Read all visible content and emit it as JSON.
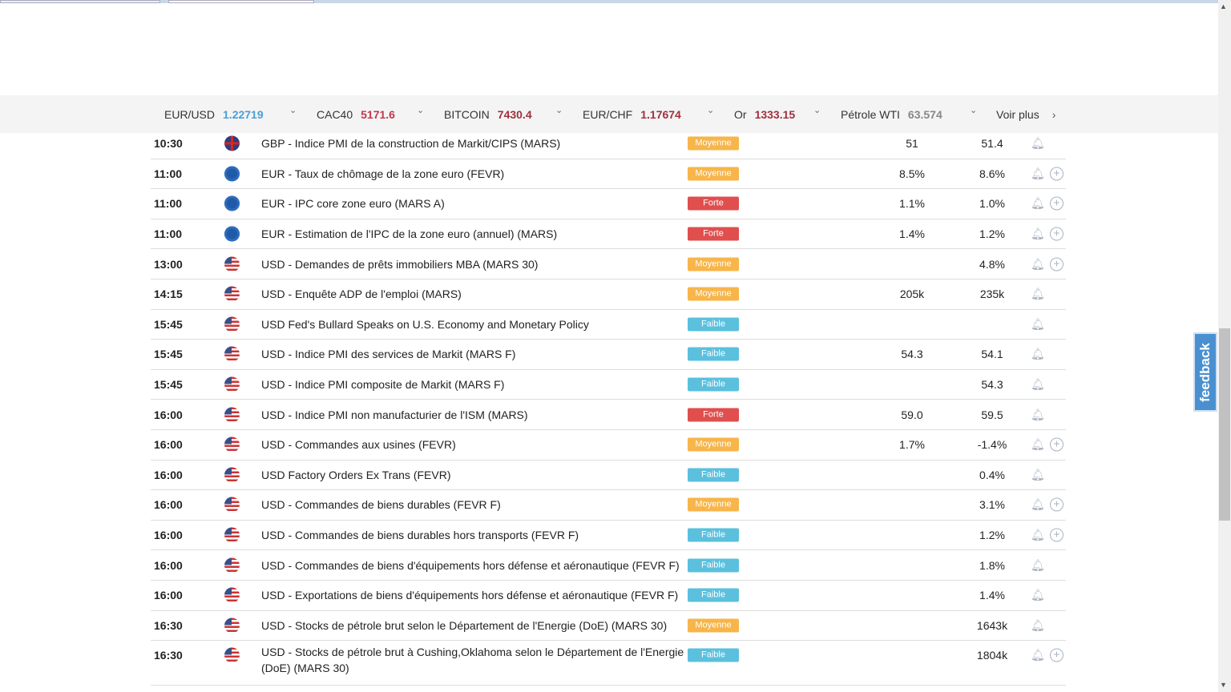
{
  "ticker": [
    {
      "label": "EUR/USD",
      "value": "1.22719",
      "color": "#4a9fd5"
    },
    {
      "label": "CAC40",
      "value": "5171.6",
      "color": "#c0394f"
    },
    {
      "label": "BITCOIN",
      "value": "7430.4",
      "color": "#a0303f"
    },
    {
      "label": "EUR/CHF",
      "value": "1.17674",
      "color": "#a0303f"
    },
    {
      "label": "Or",
      "value": "1333.15",
      "color": "#a0303f"
    },
    {
      "label": "Pétrole WTI",
      "value": "63.574",
      "color": "#888888"
    }
  ],
  "see_more": "Voir plus",
  "feedback": "feedback",
  "rows": [
    {
      "time": "10:30",
      "flag": "gbp",
      "event": "GBP - Indice PMI de la construction de Markit/CIPS (MARS)",
      "impact": "Moyenne",
      "previous": "51",
      "actual": "51.4",
      "plus": false
    },
    {
      "time": "11:00",
      "flag": "eur",
      "event": "EUR - Taux de chômage de la zone euro (FEVR)",
      "impact": "Moyenne",
      "previous": "8.5%",
      "actual": "8.6%",
      "plus": true
    },
    {
      "time": "11:00",
      "flag": "eur",
      "event": "EUR - IPC core zone euro (MARS A)",
      "impact": "Forte",
      "previous": "1.1%",
      "actual": "1.0%",
      "plus": true
    },
    {
      "time": "11:00",
      "flag": "eur",
      "event": "EUR - Estimation de l'IPC de la zone euro (annuel) (MARS)",
      "impact": "Forte",
      "previous": "1.4%",
      "actual": "1.2%",
      "plus": true
    },
    {
      "time": "13:00",
      "flag": "usd",
      "event": "USD - Demandes de prêts immobiliers MBA (MARS 30)",
      "impact": "Moyenne",
      "previous": "",
      "actual": "4.8%",
      "plus": true
    },
    {
      "time": "14:15",
      "flag": "usd",
      "event": "USD - Enquête ADP de l'emploi (MARS)",
      "impact": "Moyenne",
      "previous": "205k",
      "actual": "235k",
      "plus": false
    },
    {
      "time": "15:45",
      "flag": "usd",
      "event": "USD Fed's Bullard Speaks on U.S. Economy and Monetary Policy",
      "impact": "Faible",
      "previous": "",
      "actual": "",
      "plus": false
    },
    {
      "time": "15:45",
      "flag": "usd",
      "event": "USD - Indice PMI des services de Markit (MARS F)",
      "impact": "Faible",
      "previous": "54.3",
      "actual": "54.1",
      "plus": false
    },
    {
      "time": "15:45",
      "flag": "usd",
      "event": "USD - Indice PMI composite de Markit (MARS F)",
      "impact": "Faible",
      "previous": "",
      "actual": "54.3",
      "plus": false
    },
    {
      "time": "16:00",
      "flag": "usd",
      "event": "USD - Indice PMI non manufacturier de l'ISM (MARS)",
      "impact": "Forte",
      "previous": "59.0",
      "actual": "59.5",
      "plus": false
    },
    {
      "time": "16:00",
      "flag": "usd",
      "event": "USD - Commandes aux usines (FEVR)",
      "impact": "Moyenne",
      "previous": "1.7%",
      "actual": "-1.4%",
      "plus": true
    },
    {
      "time": "16:00",
      "flag": "usd",
      "event": "USD Factory Orders Ex Trans (FEVR)",
      "impact": "Faible",
      "previous": "",
      "actual": "0.4%",
      "plus": false
    },
    {
      "time": "16:00",
      "flag": "usd",
      "event": "USD - Commandes de biens durables (FEVR F)",
      "impact": "Moyenne",
      "previous": "",
      "actual": "3.1%",
      "plus": true
    },
    {
      "time": "16:00",
      "flag": "usd",
      "event": "USD - Commandes de biens durables hors transports (FEVR F)",
      "impact": "Faible",
      "previous": "",
      "actual": "1.2%",
      "plus": true
    },
    {
      "time": "16:00",
      "flag": "usd",
      "event": "USD - Commandes de biens d'équipements hors défense et aéronautique (FEVR F)",
      "impact": "Faible",
      "previous": "",
      "actual": "1.8%",
      "plus": false
    },
    {
      "time": "16:00",
      "flag": "usd",
      "event": "USD - Exportations de biens d'équipements hors défense et aéronautique (FEVR F)",
      "impact": "Faible",
      "previous": "",
      "actual": "1.4%",
      "plus": false
    },
    {
      "time": "16:30",
      "flag": "usd",
      "event": "USD - Stocks de pétrole brut selon le Département de l'Energie (DoE) (MARS 30)",
      "impact": "Moyenne",
      "previous": "",
      "actual": "1643k",
      "plus": false
    },
    {
      "time": "16:30",
      "flag": "usd",
      "event": "USD - Stocks de pétrole brut à Cushing,Oklahoma selon le Département de l'Energie (DoE) (MARS 30)",
      "impact": "Faible",
      "previous": "",
      "actual": "1804k",
      "plus": true
    }
  ]
}
